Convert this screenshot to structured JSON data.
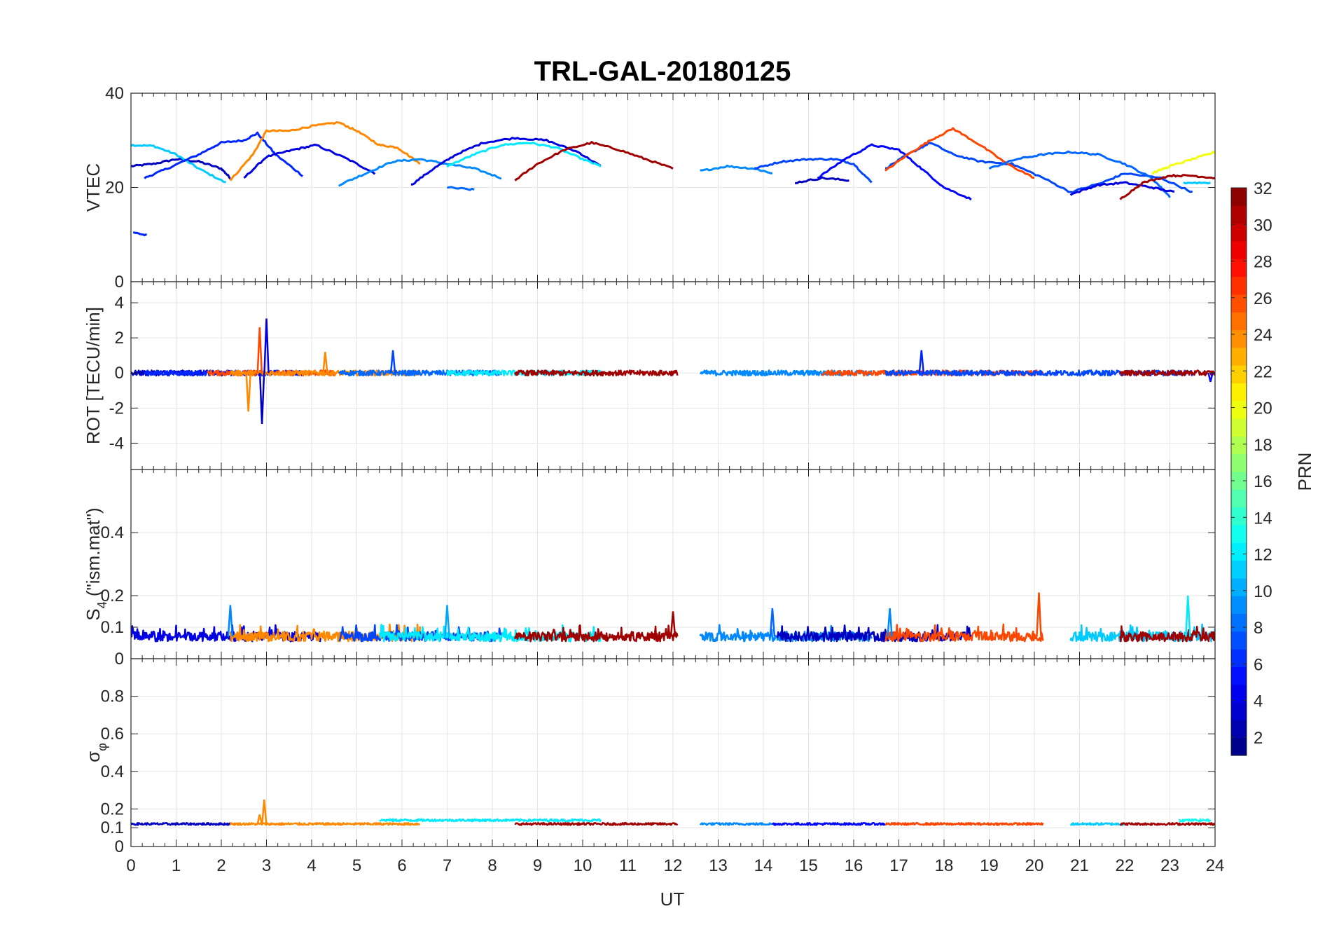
{
  "chart_data": {
    "type": "line",
    "title": "TRL-GAL-20180125",
    "xlabel": "UT",
    "x_ticks": [
      "0",
      "1",
      "2",
      "3",
      "4",
      "5",
      "6",
      "7",
      "8",
      "9",
      "10",
      "11",
      "12",
      "13",
      "14",
      "15",
      "16",
      "17",
      "18",
      "19",
      "20",
      "21",
      "22",
      "23",
      "24"
    ],
    "xlim": [
      0,
      24
    ],
    "grid": true,
    "colorbar": {
      "label": "PRN",
      "range": [
        1,
        32
      ],
      "ticks": [
        "2",
        "4",
        "6",
        "8",
        "10",
        "12",
        "14",
        "16",
        "18",
        "20",
        "22",
        "24",
        "26",
        "28",
        "30",
        "32"
      ],
      "colormap": "jet"
    },
    "panels": [
      {
        "id": "vtec",
        "ylabel": "VTEC",
        "ylim": [
          0,
          40
        ],
        "y_ticks": [
          0,
          20,
          40
        ],
        "y_tick_labels": [
          "0",
          "20",
          "40"
        ],
        "series": [
          {
            "prn": 3,
            "x": [
              0,
              0.5,
              1,
              1.5,
              2,
              2.2
            ],
            "y": [
              24.5,
              25,
              26,
              25.5,
              24,
              22
            ]
          },
          {
            "prn": 11,
            "x": [
              0,
              0.5,
              1,
              1.5,
              2.1
            ],
            "y": [
              29,
              28.8,
              27,
              24,
              21
            ]
          },
          {
            "prn": 6,
            "x": [
              0.3,
              0.8,
              1.5,
              2,
              2.5,
              2.8,
              3.2,
              3.8
            ],
            "y": [
              22,
              24,
              27,
              29.5,
              30,
              31.5,
              27,
              22.5
            ]
          },
          {
            "prn": 6,
            "x": [
              0.05,
              0.35
            ],
            "y": [
              10.5,
              9.8
            ]
          },
          {
            "prn": 4,
            "x": [
              2.5,
              3,
              3.6,
              4.1,
              4.8,
              5.4
            ],
            "y": [
              22,
              26.5,
              28,
              29,
              26,
              23
            ]
          },
          {
            "prn": 24,
            "x": [
              2.2,
              2.7,
              3,
              3.5,
              4,
              4.6,
              5,
              5.5,
              5.9,
              6.4
            ],
            "y": [
              21.5,
              27,
              32,
              32,
              33,
              33.8,
              32,
              29,
              28.5,
              25
            ]
          },
          {
            "prn": 9,
            "x": [
              4.6,
              5.2,
              5.8,
              6.4,
              7,
              7.6,
              8.2
            ],
            "y": [
              20.5,
              23,
              25.5,
              26,
              25,
              24,
              22
            ]
          },
          {
            "prn": 4,
            "x": [
              6.2,
              6.7,
              7.2,
              7.8,
              8.5,
              9.2,
              9.9,
              10.4
            ],
            "y": [
              20.5,
              24,
              27,
              29.5,
              30.5,
              30,
              27.5,
              24.5
            ]
          },
          {
            "prn": 12,
            "x": [
              7,
              7.6,
              8.2,
              8.8,
              9.4,
              10,
              10.4
            ],
            "y": [
              24.5,
              27,
              29,
              29.5,
              28.5,
              26,
              24.5
            ]
          },
          {
            "prn": 8,
            "x": [
              7,
              7.6
            ],
            "y": [
              20,
              19.5
            ]
          },
          {
            "prn": 31,
            "x": [
              8.5,
              9,
              9.6,
              10.2,
              10.8,
              11.4,
              12
            ],
            "y": [
              21.5,
              25,
              28,
              29.5,
              28,
              26,
              24
            ]
          },
          {
            "prn": 9,
            "x": [
              12.6,
              13.2,
              13.8,
              14.2
            ],
            "y": [
              23.5,
              24.5,
              24,
              23
            ]
          },
          {
            "prn": 7,
            "x": [
              13.8,
              14.4,
              15,
              15.6,
              16,
              16.4
            ],
            "y": [
              24,
              25.5,
              26,
              26,
              25,
              21
            ]
          },
          {
            "prn": 3,
            "x": [
              14.7,
              15.3,
              15.9
            ],
            "y": [
              21,
              22,
              21.5
            ]
          },
          {
            "prn": 5,
            "x": [
              15.2,
              15.8,
              16.4,
              17,
              17.5,
              18,
              18.6
            ],
            "y": [
              22,
              26,
              29,
              28,
              24,
              20,
              17.5
            ]
          },
          {
            "prn": 7,
            "x": [
              16.7,
              17.2,
              17.7,
              18.2,
              18.8,
              19.5,
              20.2,
              20.8,
              21.5,
              22,
              22.8,
              23.5
            ],
            "y": [
              24,
              27,
              29.5,
              27,
              25.5,
              25,
              22,
              19,
              21,
              23,
              22,
              19
            ]
          },
          {
            "prn": 26,
            "x": [
              16.7,
              17.2,
              17.7,
              18.2,
              18.8,
              19.4,
              20
            ],
            "y": [
              23.5,
              27,
              30,
              32.5,
              29,
              25,
              22
            ]
          },
          {
            "prn": 8,
            "x": [
              19,
              19.6,
              20.2,
              20.8,
              21.4,
              22,
              22.6,
              23
            ],
            "y": [
              24,
              26,
              27,
              27.5,
              27,
              25,
              22,
              18
            ]
          },
          {
            "prn": 4,
            "x": [
              20.8,
              21.4,
              22,
              22.6,
              23.1
            ],
            "y": [
              18.5,
              20.5,
              21,
              20,
              19
            ]
          },
          {
            "prn": 31,
            "x": [
              21.9,
              22.4,
              23,
              23.5,
              24
            ],
            "y": [
              17.5,
              21,
              22.5,
              22.5,
              22
            ]
          },
          {
            "prn": 20,
            "x": [
              22.6,
              23,
              23.5,
              24
            ],
            "y": [
              23,
              24.5,
              26,
              27.5
            ]
          },
          {
            "prn": 11,
            "x": [
              23.3,
              23.9
            ],
            "y": [
              21,
              21
            ]
          }
        ]
      },
      {
        "id": "rot",
        "ylabel": "ROT [TECU/min]",
        "ylim": [
          -5.5,
          5.2
        ],
        "y_ticks": [
          -4,
          -2,
          0,
          2,
          4
        ],
        "y_tick_labels": [
          "-4",
          "-2",
          "0",
          "2",
          "4"
        ],
        "baseline": 0,
        "noise_amplitude": 0.15,
        "spikes": [
          {
            "x": 2.85,
            "y": 2.6,
            "prn": 26
          },
          {
            "x": 2.9,
            "y": -2.9,
            "prn": 3
          },
          {
            "x": 3.0,
            "y": 3.1,
            "prn": 4
          },
          {
            "x": 2.6,
            "y": -2.2,
            "prn": 24
          },
          {
            "x": 4.3,
            "y": 1.2,
            "prn": 24
          },
          {
            "x": 5.8,
            "y": 1.3,
            "prn": 7
          },
          {
            "x": 17.5,
            "y": 1.3,
            "prn": 6
          },
          {
            "x": 23.9,
            "y": -0.5,
            "prn": 5
          }
        ],
        "segments": [
          {
            "prn": 3,
            "x_range": [
              0,
              2.2
            ]
          },
          {
            "prn": 6,
            "x_range": [
              0.3,
              3.8
            ]
          },
          {
            "prn": 26,
            "x_range": [
              1.7,
              4.5
            ]
          },
          {
            "prn": 24,
            "x_range": [
              2.2,
              6.4
            ]
          },
          {
            "prn": 8,
            "x_range": [
              4.6,
              8.2
            ]
          },
          {
            "prn": 12,
            "x_range": [
              7,
              10.4
            ]
          },
          {
            "prn": 31,
            "x_range": [
              8.5,
              12.1
            ]
          },
          {
            "prn": 9,
            "x_range": [
              12.6,
              16.4
            ]
          },
          {
            "prn": 26,
            "x_range": [
              15.3,
              20.2
            ]
          },
          {
            "prn": 7,
            "x_range": [
              16.7,
              23.5
            ]
          },
          {
            "prn": 31,
            "x_range": [
              21.9,
              24
            ]
          }
        ]
      },
      {
        "id": "s4",
        "ylabel": "S4 (\"ism.mat\")",
        "ylabel_main": "S",
        "ylabel_sub": "4",
        "ylabel_rest": " (\"ism.mat\")",
        "ylim": [
          0,
          0.6
        ],
        "y_ticks": [
          0,
          0.1,
          0.2,
          0.4
        ],
        "y_tick_labels": [
          "0",
          "0.1",
          "0.2",
          "0.4"
        ],
        "baseline": 0.07,
        "noise_amplitude": 0.03,
        "spikes": [
          {
            "x": 2.2,
            "y": 0.17,
            "prn": 9
          },
          {
            "x": 7.0,
            "y": 0.17,
            "prn": 10
          },
          {
            "x": 12.0,
            "y": 0.15,
            "prn": 31
          },
          {
            "x": 14.2,
            "y": 0.16,
            "prn": 8
          },
          {
            "x": 16.8,
            "y": 0.16,
            "prn": 9
          },
          {
            "x": 20.1,
            "y": 0.21,
            "prn": 26
          },
          {
            "x": 23.4,
            "y": 0.2,
            "prn": 12
          }
        ],
        "segments": [
          {
            "prn": 4,
            "x_range": [
              0,
              4.2
            ]
          },
          {
            "prn": 24,
            "x_range": [
              2.2,
              6.4
            ]
          },
          {
            "prn": 7,
            "x_range": [
              4.6,
              8.2
            ]
          },
          {
            "prn": 12,
            "x_range": [
              5.5,
              10.4
            ]
          },
          {
            "prn": 31,
            "x_range": [
              8.5,
              12.1
            ]
          },
          {
            "prn": 9,
            "x_range": [
              12.6,
              16.4
            ]
          },
          {
            "prn": 3,
            "x_range": [
              14.3,
              18.6
            ]
          },
          {
            "prn": 26,
            "x_range": [
              16.7,
              20.2
            ]
          },
          {
            "prn": 11,
            "x_range": [
              20.8,
              24
            ]
          },
          {
            "prn": 31,
            "x_range": [
              21.9,
              24
            ]
          }
        ]
      },
      {
        "id": "sigma_phi",
        "ylabel": "σφ",
        "ylabel_main": "σ",
        "ylabel_sub": "φ",
        "ylim": [
          0,
          1
        ],
        "y_ticks": [
          0,
          0.1,
          0.2,
          0.4,
          0.6,
          0.8
        ],
        "y_tick_labels": [
          "0",
          "0.1",
          "0.2",
          "0.4",
          "0.6",
          "0.8"
        ],
        "baseline": 0.12,
        "noise_amplitude": 0.006,
        "spikes": [
          {
            "x": 2.85,
            "y": 0.17,
            "prn": 24
          },
          {
            "x": 2.95,
            "y": 0.25,
            "prn": 24
          }
        ],
        "segments": [
          {
            "prn": 3,
            "x_range": [
              0,
              2.2
            ]
          },
          {
            "prn": 24,
            "x_range": [
              2.2,
              6.4
            ]
          },
          {
            "prn": 12,
            "x_range": [
              5.5,
              10.4
            ],
            "offset": 0.02
          },
          {
            "prn": 31,
            "x_range": [
              8.5,
              12.1
            ]
          },
          {
            "prn": 9,
            "x_range": [
              12.6,
              14.2
            ]
          },
          {
            "prn": 5,
            "x_range": [
              14.2,
              16.7
            ]
          },
          {
            "prn": 26,
            "x_range": [
              16.7,
              20.2
            ]
          },
          {
            "prn": 11,
            "x_range": [
              20.8,
              22
            ]
          },
          {
            "prn": 31,
            "x_range": [
              21.9,
              24
            ]
          },
          {
            "prn": 13,
            "x_range": [
              23.2,
              23.9
            ],
            "offset": 0.02
          }
        ]
      }
    ]
  }
}
